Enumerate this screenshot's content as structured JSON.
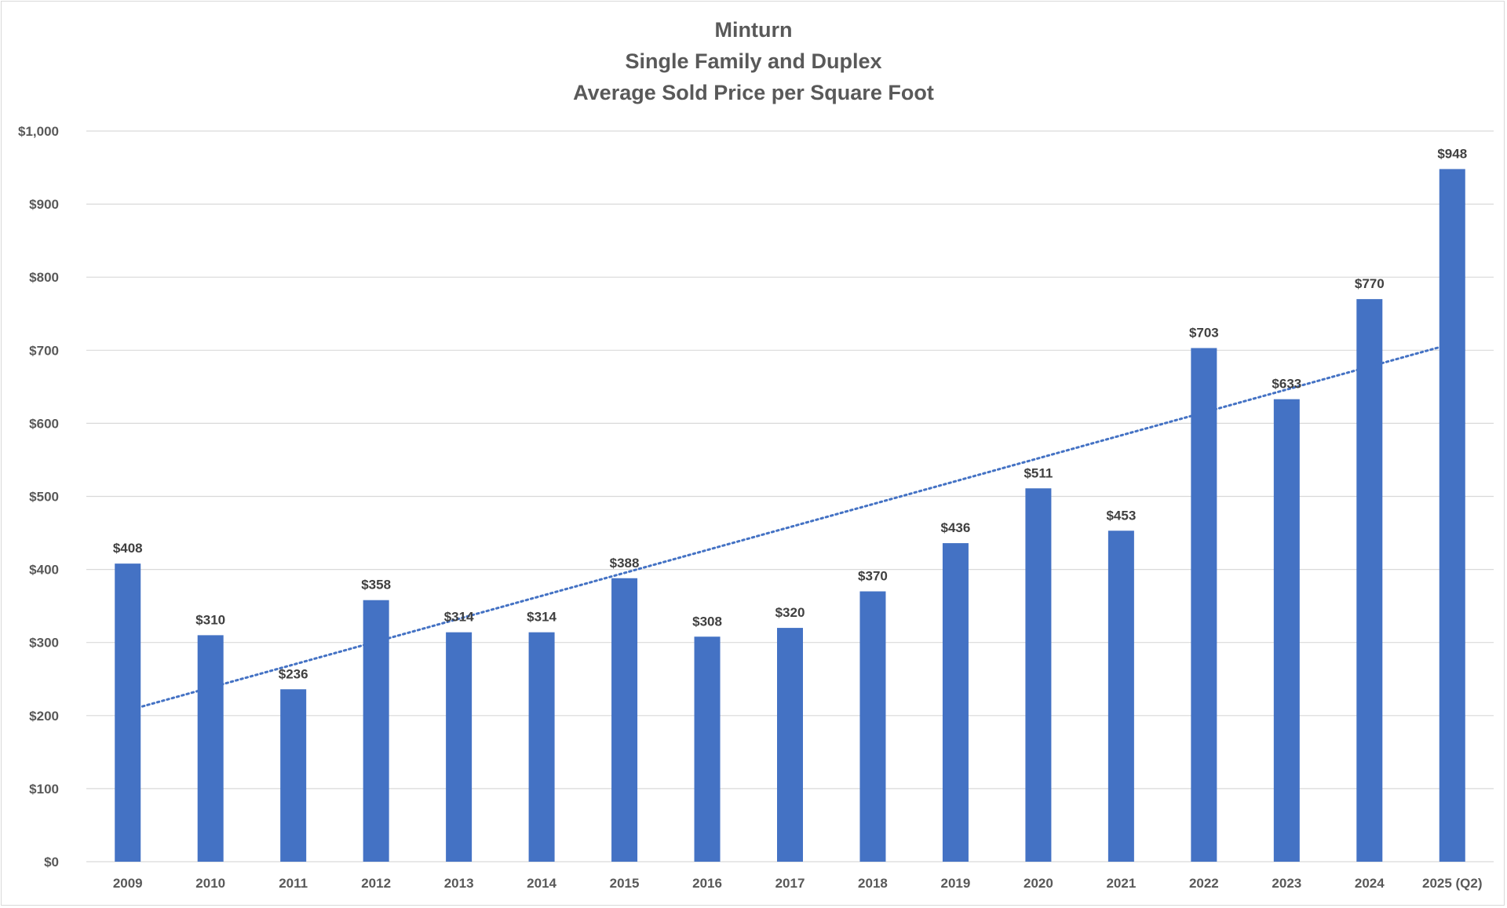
{
  "chart_data": {
    "type": "bar",
    "title_lines": [
      "Minturn",
      "Single Family and Duplex",
      "Average Sold Price per Square Foot"
    ],
    "xlabel": "",
    "ylabel": "",
    "ylim": [
      0,
      1000
    ],
    "yticks": [
      0,
      100,
      200,
      300,
      400,
      500,
      600,
      700,
      800,
      900,
      1000
    ],
    "ytick_labels": [
      "$0",
      "$100",
      "$200",
      "$300",
      "$400",
      "$500",
      "$600",
      "$700",
      "$800",
      "$900",
      "$1,000"
    ],
    "categories": [
      "2009",
      "2010",
      "2011",
      "2012",
      "2013",
      "2014",
      "2015",
      "2016",
      "2017",
      "2018",
      "2019",
      "2020",
      "2021",
      "2022",
      "2023",
      "2024",
      "2025 (Q2)"
    ],
    "values": [
      408,
      310,
      236,
      358,
      314,
      314,
      388,
      308,
      320,
      370,
      436,
      511,
      453,
      703,
      633,
      770,
      948
    ],
    "value_labels": [
      "$408",
      "$310",
      "$236",
      "$358",
      "$314",
      "$314",
      "$388",
      "$308",
      "$320",
      "$370",
      "$436",
      "$511",
      "$453",
      "$703",
      "$633",
      "$770",
      "$948"
    ],
    "trendline": {
      "type": "linear",
      "style": "dotted",
      "start": 207,
      "end": 709
    },
    "grid": true,
    "legend": "none",
    "colors": {
      "bar": "#4472C4",
      "trend": "#4472C4",
      "grid": "#d9d9d9",
      "text": "#595959",
      "labels": "#404040"
    }
  }
}
